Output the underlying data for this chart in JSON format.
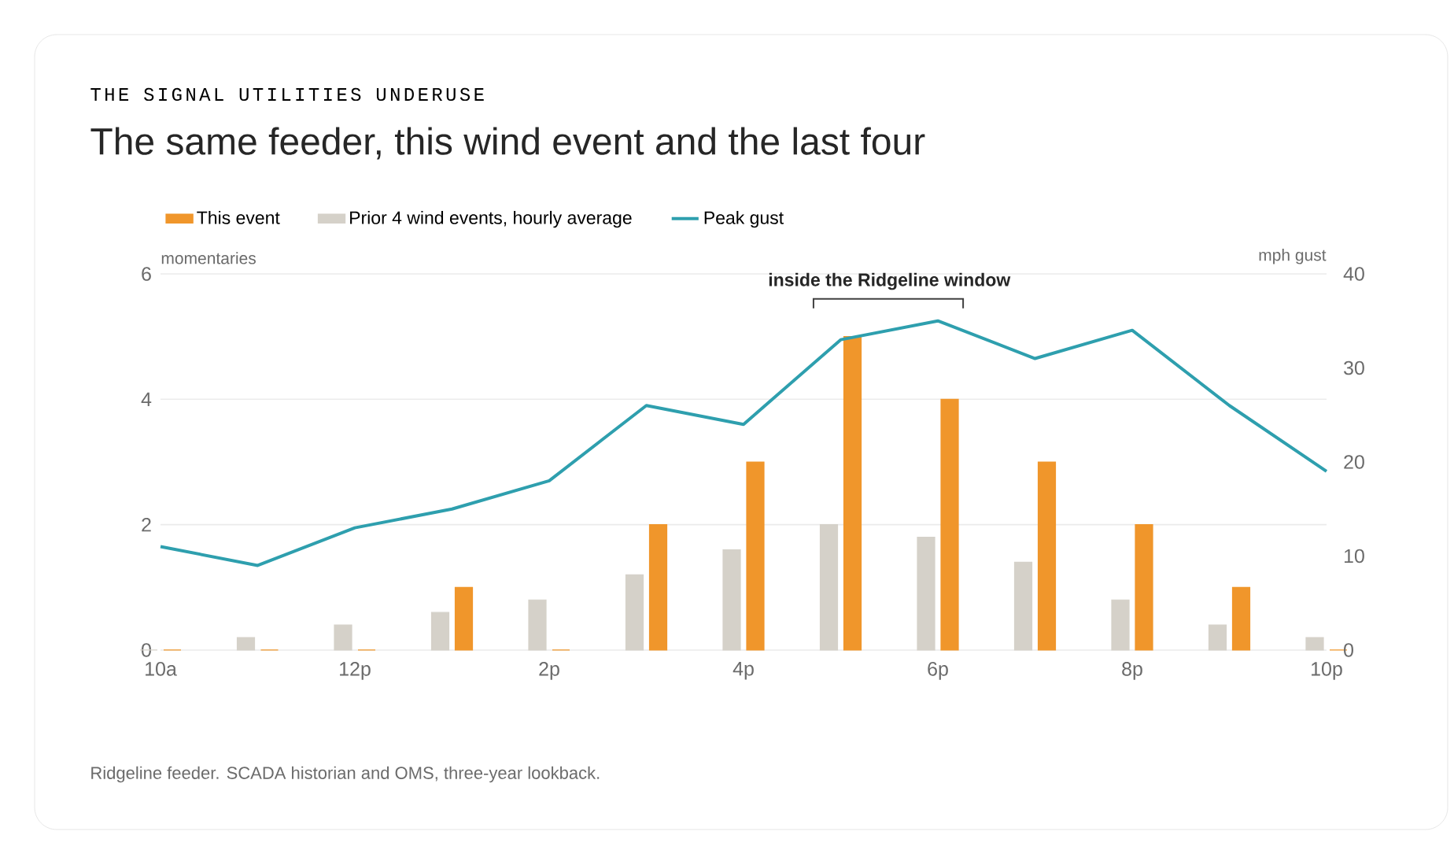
{
  "chart_data": {
    "type": "bar",
    "subtitle": "THE SIGNAL UTILITIES UNDERUSE",
    "title": "The same feeder, this wind event and the last four",
    "ylabel": "momentaries",
    "y2label": "mph gust",
    "categories": [
      "10a",
      null,
      "12p",
      null,
      "2p",
      null,
      "4p",
      null,
      "6p",
      null,
      "8p",
      null,
      "10p"
    ],
    "ylim": [
      0,
      6
    ],
    "yticks": [
      0,
      2,
      4,
      6
    ],
    "y2lim": [
      0,
      40
    ],
    "y2ticks": [
      0,
      10,
      20,
      30,
      40
    ],
    "series": [
      {
        "name": "This event",
        "color": "#f0962b",
        "values": [
          0,
          0,
          0,
          1,
          0,
          2,
          3,
          5,
          4,
          3,
          2,
          1,
          0
        ]
      },
      {
        "name": "Prior 4 wind events, hourly average",
        "color": "#d5d1c9",
        "values": [
          0,
          0.2,
          0.4,
          0.6,
          0.8,
          1.2,
          1.6,
          2.0,
          1.8,
          1.4,
          0.8,
          0.4,
          0.2
        ]
      },
      {
        "name": "Peak gust",
        "type": "line",
        "axis": "y2",
        "color": "#2e9fae",
        "values": [
          11,
          9,
          13,
          15,
          18,
          26,
          24,
          33,
          35,
          31,
          34,
          26,
          19
        ]
      }
    ],
    "annotations": [
      "inside the Ridgeline window",
      "Ridgeline feeder. SCADA historian and OMS, three-year lookback."
    ],
    "grid": "y",
    "legend": "top left"
  }
}
